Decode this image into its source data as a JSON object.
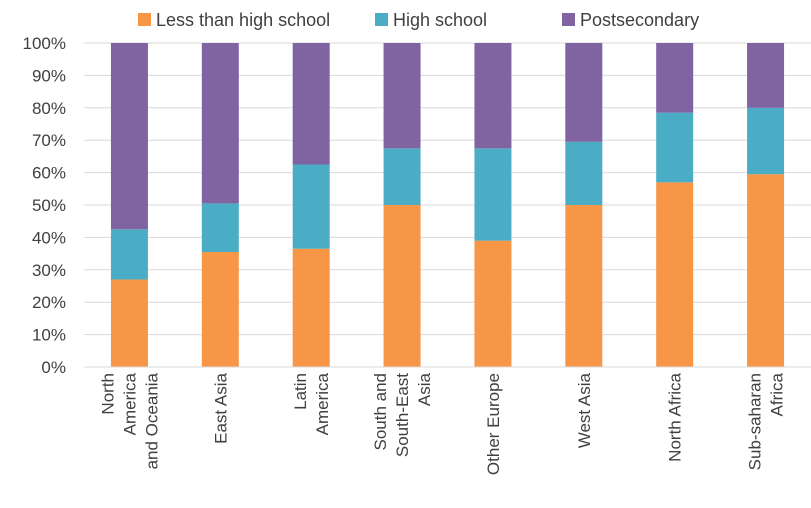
{
  "chart_data": {
    "type": "bar",
    "stacked": true,
    "title": "",
    "xlabel": "",
    "ylabel": "",
    "ylim": [
      0,
      100
    ],
    "y_ticks": [
      "0%",
      "10%",
      "20%",
      "30%",
      "40%",
      "50%",
      "60%",
      "70%",
      "80%",
      "90%",
      "100%"
    ],
    "grid": true,
    "legend_position": "top",
    "categories": [
      [
        "North",
        "America",
        "and Oceania"
      ],
      [
        "East Asia"
      ],
      [
        "Latin",
        "America"
      ],
      [
        "South and",
        "South-East",
        "Asia"
      ],
      [
        "Other Europe"
      ],
      [
        "West Asia"
      ],
      [
        "North Africa"
      ],
      [
        "Sub-saharan",
        "Africa"
      ]
    ],
    "series": [
      {
        "name": "Less than high school",
        "color": "#F79646",
        "values": [
          27,
          35.5,
          36.5,
          50,
          39,
          50,
          57,
          59.5
        ]
      },
      {
        "name": "High school",
        "color": "#4BACC6",
        "values": [
          15.5,
          15,
          26,
          17.5,
          28.5,
          19.5,
          21.5,
          20.5
        ]
      },
      {
        "name": "Postsecondary",
        "color": "#8064A2",
        "values": [
          57.5,
          49.5,
          37.5,
          32.5,
          32.5,
          30.5,
          21.5,
          20
        ]
      }
    ]
  }
}
